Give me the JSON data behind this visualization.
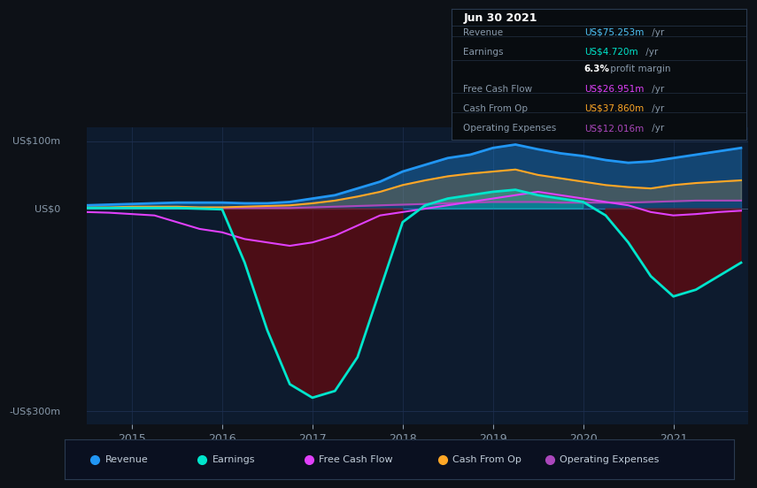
{
  "bg_color": "#0d1117",
  "plot_bg_color": "#0d1b2e",
  "grid_color": "#1e3050",
  "title_box": {
    "date": "Jun 30 2021",
    "rows": [
      {
        "label": "Revenue",
        "value": "US$75.253m",
        "color": "#4fc3f7"
      },
      {
        "label": "Earnings",
        "value": "US$4.720m",
        "color": "#00e5cc"
      },
      {
        "label": "",
        "value": "6.3%",
        "suffix": " profit margin",
        "color": "#ffffff"
      },
      {
        "label": "Free Cash Flow",
        "value": "US$26.951m",
        "color": "#e040fb"
      },
      {
        "label": "Cash From Op",
        "value": "US$37.860m",
        "color": "#ffa726"
      },
      {
        "label": "Operating Expenses",
        "value": "US$12.016m",
        "color": "#ab47bc"
      }
    ]
  },
  "ylabel_top": "US$100m",
  "ylabel_zero": "US$0",
  "ylabel_bottom": "-US$300m",
  "xlim": [
    2014.5,
    2021.83
  ],
  "ylim": [
    -320,
    120
  ],
  "xticks": [
    2015,
    2016,
    2017,
    2018,
    2019,
    2020,
    2021
  ],
  "colors": {
    "revenue": "#2196f3",
    "earnings": "#00e5cc",
    "free_cash_flow": "#e040fb",
    "cash_from_op": "#ffa726",
    "op_expenses": "#ab47bc"
  },
  "legend": [
    {
      "label": "Revenue",
      "color": "#2196f3"
    },
    {
      "label": "Earnings",
      "color": "#00e5cc"
    },
    {
      "label": "Free Cash Flow",
      "color": "#e040fb"
    },
    {
      "label": "Cash From Op",
      "color": "#ffa726"
    },
    {
      "label": "Operating Expenses",
      "color": "#ab47bc"
    }
  ],
  "t": [
    2014.5,
    2014.75,
    2015.0,
    2015.25,
    2015.5,
    2015.75,
    2016.0,
    2016.25,
    2016.5,
    2016.75,
    2017.0,
    2017.25,
    2017.5,
    2017.75,
    2018.0,
    2018.25,
    2018.5,
    2018.75,
    2019.0,
    2019.25,
    2019.5,
    2019.75,
    2020.0,
    2020.25,
    2020.5,
    2020.75,
    2021.0,
    2021.25,
    2021.5,
    2021.75
  ],
  "revenue": [
    5,
    6,
    7,
    8,
    9,
    9,
    9,
    8,
    8,
    10,
    15,
    20,
    30,
    40,
    55,
    65,
    75,
    80,
    90,
    95,
    88,
    82,
    78,
    72,
    68,
    70,
    75,
    80,
    85,
    90
  ],
  "earnings": [
    1,
    1,
    1,
    1,
    1,
    0,
    -1,
    -80,
    -180,
    -260,
    -280,
    -270,
    -220,
    -120,
    -20,
    5,
    15,
    20,
    25,
    28,
    20,
    15,
    10,
    -10,
    -50,
    -100,
    -130,
    -120,
    -100,
    -80
  ],
  "free_cash_flow": [
    -5,
    -6,
    -8,
    -10,
    -20,
    -30,
    -35,
    -45,
    -50,
    -55,
    -50,
    -40,
    -25,
    -10,
    -5,
    0,
    5,
    10,
    15,
    20,
    25,
    20,
    15,
    10,
    5,
    -5,
    -10,
    -8,
    -5,
    -3
  ],
  "cash_from_op": [
    2,
    2,
    3,
    3,
    3,
    2,
    2,
    3,
    4,
    5,
    8,
    12,
    18,
    25,
    35,
    42,
    48,
    52,
    55,
    58,
    50,
    45,
    40,
    35,
    32,
    30,
    35,
    38,
    40,
    42
  ],
  "op_expenses": [
    1,
    1,
    1,
    1,
    1,
    1,
    1,
    1,
    1,
    1,
    2,
    3,
    4,
    5,
    6,
    7,
    8,
    9,
    10,
    10,
    10,
    9,
    9,
    9,
    9,
    10,
    11,
    12,
    12,
    12
  ]
}
